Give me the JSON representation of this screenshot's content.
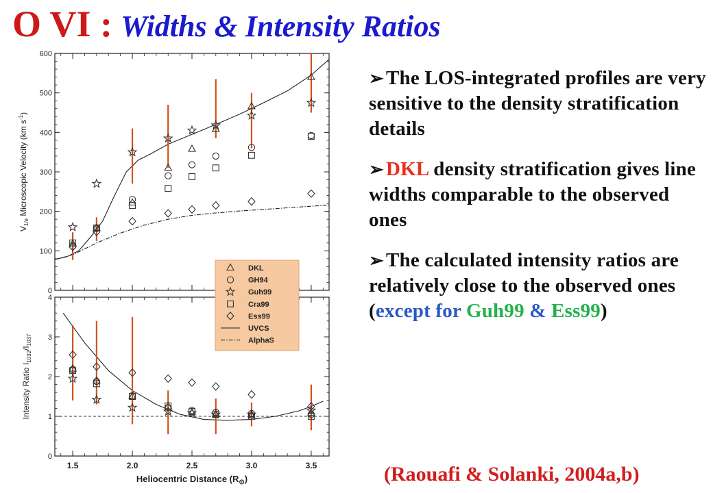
{
  "title": {
    "main": "O VI :",
    "sub": "Widths  & Intensity Ratios"
  },
  "bullets": [
    {
      "parts": [
        {
          "text": "The LOS-integrated profiles are very sensitive to the density stratification details",
          "color": ""
        }
      ]
    },
    {
      "parts": [
        {
          "text": "DKL",
          "color": "red"
        },
        {
          "text": " density stratification gives line widths comparable to the observed ones",
          "color": ""
        }
      ]
    },
    {
      "parts": [
        {
          "text": "The calculated intensity ratios are relatively close to the observed ones",
          "color": ""
        }
      ],
      "extra": [
        {
          "text": "(",
          "color": ""
        },
        {
          "text": "except for ",
          "color": "blue"
        },
        {
          "text": "Guh99",
          "color": "green"
        },
        {
          "text": " & ",
          "color": "blue"
        },
        {
          "text": "Ess99",
          "color": "green"
        },
        {
          "text": ")",
          "color": ""
        }
      ]
    }
  ],
  "citation": "(Raouafi & Solanki, 2004a,b)",
  "colors": {
    "red": "#e8301c",
    "blue": "#2a58c8",
    "green": "#22b24a",
    "errorbar": "#d2521e",
    "legend_bg": "#f6c9a0"
  },
  "chart_data": [
    {
      "type": "scatter",
      "title": "",
      "xlabel": "",
      "ylabel": "V1/e Microscopic Velocity (km s-1)",
      "ylabel_parts": {
        "main": "V",
        "sub": "1/e",
        "rest": " Microscopic Velocity (km s",
        "sup": "-1",
        "close": ")"
      },
      "xlim": [
        1.35,
        3.65
      ],
      "ylim": [
        0,
        600
      ],
      "yticks": [
        0,
        100,
        200,
        300,
        400,
        500,
        600
      ],
      "observations": {
        "x": [
          1.5,
          1.7,
          2.0,
          2.3,
          2.7,
          3.0,
          3.5
        ],
        "y": [
          112,
          155,
          340,
          390,
          460,
          430,
          510
        ],
        "yerr_low": [
          35,
          30,
          70,
          80,
          75,
          70,
          60
        ],
        "yerr_high": [
          35,
          30,
          70,
          80,
          75,
          70,
          90
        ]
      },
      "series": [
        {
          "name": "DKL",
          "marker": "triangle",
          "x": [
            1.5,
            1.7,
            2.0,
            2.3,
            2.5,
            2.7,
            3.0,
            3.5
          ],
          "y": [
            118,
            158,
            222,
            310,
            358,
            408,
            466,
            540
          ]
        },
        {
          "name": "GH94",
          "marker": "circle",
          "x": [
            1.5,
            1.7,
            2.0,
            2.3,
            2.5,
            2.7,
            3.0,
            3.5
          ],
          "y": [
            112,
            157,
            230,
            290,
            318,
            340,
            362,
            392
          ]
        },
        {
          "name": "Guh99",
          "marker": "star",
          "x": [
            1.5,
            1.7,
            2.0,
            2.3,
            2.5,
            2.7,
            3.0,
            3.5
          ],
          "y": [
            160,
            270,
            350,
            385,
            405,
            418,
            443,
            475
          ]
        },
        {
          "name": "Cra99",
          "marker": "square",
          "x": [
            1.5,
            1.7,
            2.0,
            2.3,
            2.5,
            2.7,
            3.0,
            3.5
          ],
          "y": [
            120,
            158,
            215,
            258,
            288,
            310,
            342,
            390
          ]
        },
        {
          "name": "Ess99",
          "marker": "diamond",
          "x": [
            1.5,
            1.7,
            2.0,
            2.3,
            2.5,
            2.7,
            3.0,
            3.5
          ],
          "y": [
            110,
            148,
            175,
            195,
            205,
            215,
            225,
            245
          ]
        },
        {
          "name": "UVCS",
          "marker": "line-solid",
          "x": [
            1.35,
            1.45,
            1.55,
            1.65,
            1.75,
            1.85,
            1.95,
            2.05,
            2.15,
            2.3,
            2.5,
            2.7,
            2.9,
            3.1,
            3.3,
            3.5,
            3.65
          ],
          "y": [
            78,
            85,
            100,
            135,
            175,
            240,
            300,
            330,
            345,
            370,
            395,
            420,
            446,
            475,
            505,
            545,
            585
          ]
        },
        {
          "name": "AlphaS",
          "marker": "line-dashdot",
          "x": [
            1.35,
            1.5,
            1.7,
            1.9,
            2.1,
            2.3,
            2.5,
            2.7,
            2.9,
            3.1,
            3.3,
            3.5,
            3.65
          ],
          "y": [
            78,
            90,
            120,
            145,
            165,
            180,
            190,
            196,
            201,
            205,
            209,
            213,
            216
          ]
        }
      ]
    },
    {
      "type": "scatter",
      "title": "",
      "xlabel": "Heliocentric Distance (R⊙)",
      "xlabel_parts": {
        "main": "Heliocentric Distance (R",
        "sub": "⊙",
        "close": ")"
      },
      "ylabel": "Intensity Ratio I1032/I1037",
      "ylabel_parts": {
        "main": "Intensity Ratio I",
        "sub1": "1032",
        "slash": "/I",
        "sub2": "1037"
      },
      "xlim": [
        1.35,
        3.65
      ],
      "ylim": [
        0,
        4
      ],
      "yticks": [
        0,
        1,
        2,
        3,
        4
      ],
      "xticks": [
        1.5,
        2.0,
        2.5,
        3.0,
        3.5
      ],
      "xtick_labels": [
        "1.5",
        "2.0",
        "2.5",
        "3.0",
        "3.5"
      ],
      "reference_line_y": 1,
      "observations": {
        "x": [
          1.5,
          1.7,
          2.0,
          2.3,
          2.7,
          3.0,
          3.5
        ],
        "y": [
          2.35,
          2.35,
          2.15,
          1.1,
          1.0,
          1.05,
          1.15
        ],
        "yerr_low": [
          0.95,
          1.05,
          1.35,
          0.55,
          0.45,
          0.3,
          0.5
        ],
        "yerr_high": [
          0.95,
          1.05,
          1.35,
          0.55,
          0.45,
          0.3,
          0.65
        ]
      },
      "series": [
        {
          "name": "DKL",
          "marker": "triangle",
          "x": [
            1.5,
            1.7,
            2.0,
            2.3,
            2.5,
            2.7,
            3.0,
            3.5
          ],
          "y": [
            2.2,
            1.9,
            1.5,
            1.25,
            1.1,
            1.05,
            1.02,
            1.08
          ]
        },
        {
          "name": "GH94",
          "marker": "circle",
          "x": [
            1.5,
            1.7,
            2.0,
            2.3,
            2.5,
            2.7,
            3.0,
            3.5
          ],
          "y": [
            2.18,
            1.88,
            1.52,
            1.22,
            1.15,
            1.1,
            1.07,
            1.05
          ]
        },
        {
          "name": "Guh99",
          "marker": "star",
          "x": [
            1.5,
            1.7,
            2.0,
            2.3,
            2.5,
            2.7,
            3.0,
            3.5
          ],
          "y": [
            1.95,
            1.42,
            1.22,
            1.12,
            1.08,
            1.05,
            1.05,
            1.15
          ]
        },
        {
          "name": "Cra99",
          "marker": "square",
          "x": [
            1.5,
            1.7,
            2.0,
            2.3,
            2.5,
            2.7,
            3.0,
            3.5
          ],
          "y": [
            2.15,
            1.82,
            1.5,
            1.26,
            1.12,
            1.05,
            1.0,
            1.0
          ]
        },
        {
          "name": "Ess99",
          "marker": "diamond",
          "x": [
            1.5,
            1.7,
            2.0,
            2.3,
            2.5,
            2.7,
            3.0,
            3.5
          ],
          "y": [
            2.55,
            2.25,
            2.1,
            1.95,
            1.85,
            1.75,
            1.55,
            1.25
          ]
        },
        {
          "name": "UVCS",
          "marker": "line-solid",
          "x": [
            1.42,
            1.6,
            1.8,
            2.0,
            2.2,
            2.4,
            2.6,
            2.8,
            3.0,
            3.2,
            3.4,
            3.5,
            3.6
          ],
          "y": [
            3.6,
            2.85,
            2.15,
            1.65,
            1.3,
            1.05,
            0.92,
            0.9,
            0.92,
            1.0,
            1.14,
            1.25,
            1.38
          ]
        }
      ]
    }
  ],
  "legend": {
    "items": [
      {
        "label": "DKL",
        "marker": "triangle"
      },
      {
        "label": "GH94",
        "marker": "circle"
      },
      {
        "label": "Guh99",
        "marker": "star"
      },
      {
        "label": "Cra99",
        "marker": "square"
      },
      {
        "label": "Ess99",
        "marker": "diamond"
      },
      {
        "label": "UVCS",
        "marker": "line-solid"
      },
      {
        "label": "AlphaS",
        "marker": "line-dashdot"
      }
    ]
  }
}
